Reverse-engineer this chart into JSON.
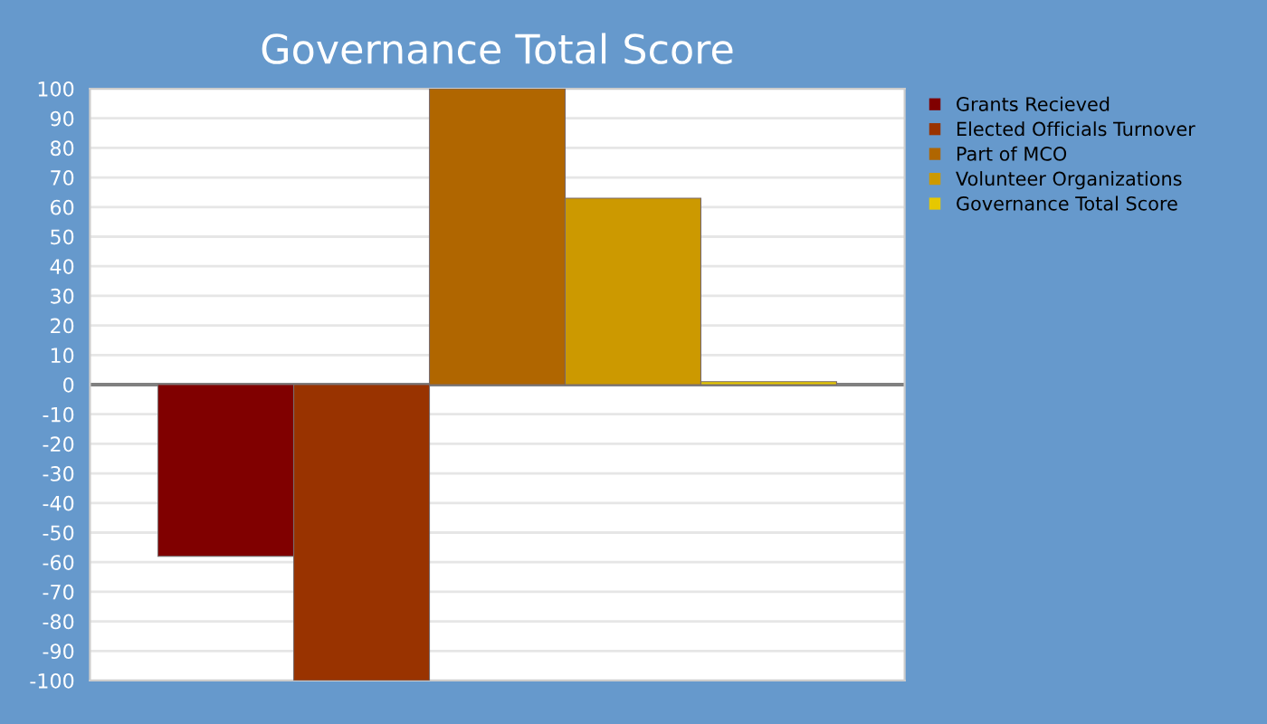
{
  "chart_data": {
    "type": "bar",
    "title": "Governance Total Score",
    "categories": [
      null
    ],
    "series": [
      {
        "name": "Grants Recieved",
        "color": "#800000",
        "values": [
          -58
        ]
      },
      {
        "name": "Elected Officials Turnover",
        "color": "#993300",
        "values": [
          -100
        ]
      },
      {
        "name": "Part of MCO",
        "color": "#b06600",
        "values": [
          100
        ]
      },
      {
        "name": "Volunteer Organizations",
        "color": "#cc9900",
        "values": [
          63
        ]
      },
      {
        "name": "Governance Total Score",
        "color": "#e6c800",
        "values": [
          1
        ]
      }
    ],
    "ylim": [
      -100,
      100
    ],
    "yticks": [
      -100,
      -90,
      -80,
      -70,
      -60,
      -50,
      -40,
      -30,
      -20,
      -10,
      0,
      10,
      20,
      30,
      40,
      50,
      60,
      70,
      80,
      90,
      100
    ],
    "grid": "y",
    "legend": "top right",
    "tick_labels": "y"
  }
}
